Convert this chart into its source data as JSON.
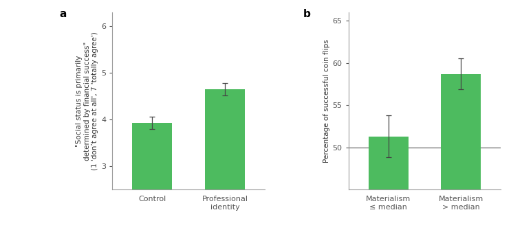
{
  "panel_a": {
    "categories": [
      "Control",
      "Professional\nidentity"
    ],
    "values": [
      3.93,
      4.65
    ],
    "errors": [
      0.13,
      0.13
    ],
    "bar_color": "#4dbb5f",
    "ylabel": "\"Social status is primarily\ndetermined by financial success\"\n(1 'don’t agree at all', 7 'totally agree')",
    "ylim": [
      2.5,
      6.3
    ],
    "yticks": [
      3,
      4,
      5,
      6
    ],
    "label": "a"
  },
  "panel_b": {
    "categories": [
      "Materialism\n≤ median",
      "Materialism\n> median"
    ],
    "values": [
      51.3,
      58.7
    ],
    "errors": [
      2.5,
      1.8
    ],
    "bar_color": "#4dbb5f",
    "ylabel": "Percentage of successful coin flips",
    "ylim": [
      45,
      66
    ],
    "yticks": [
      50,
      55,
      60,
      65
    ],
    "hline": 50,
    "label": "b"
  },
  "bar_width": 0.55,
  "background_color": "#ffffff",
  "spine_color": "#999999",
  "tick_color": "#555555",
  "label_fontsize": 7.5,
  "tick_fontsize": 8,
  "panel_label_fontsize": 11
}
